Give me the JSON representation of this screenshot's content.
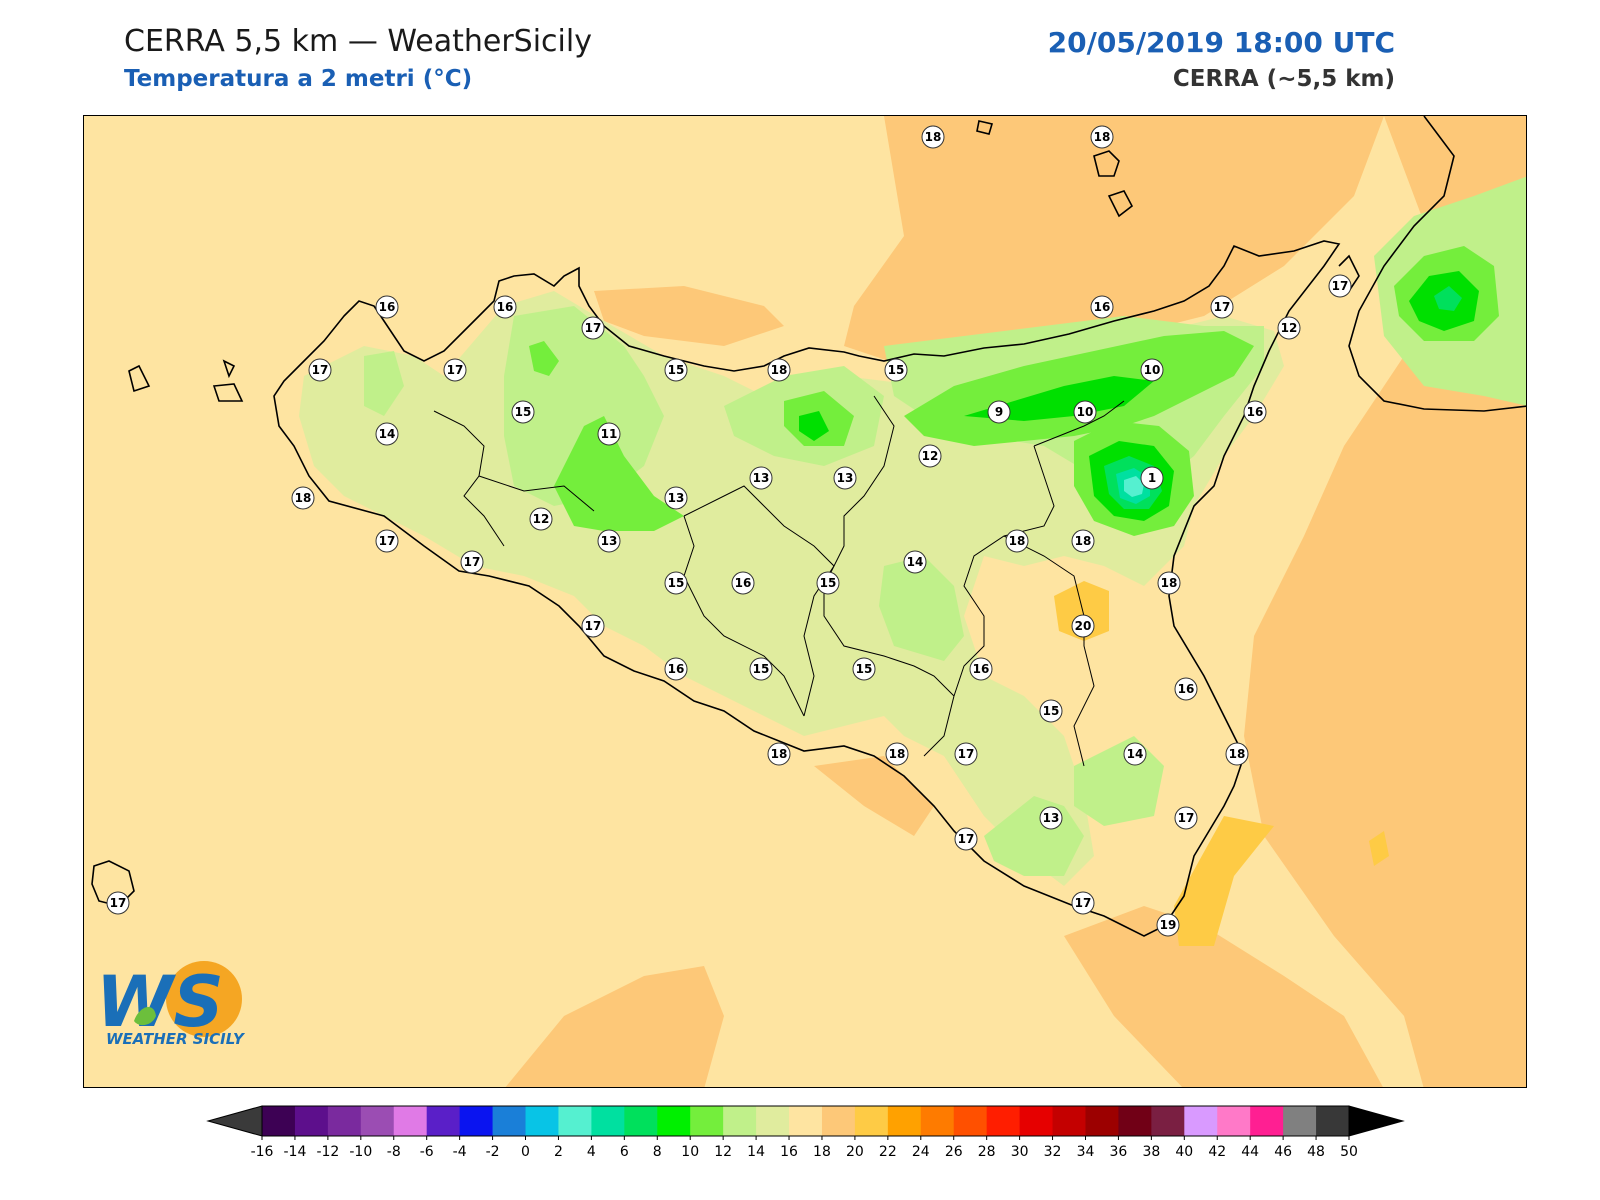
{
  "header": {
    "title": "CERRA 5,5 km — WeatherSicily",
    "subtitle": "Temperatura a 2 metri (°C)",
    "datetime": "20/05/2019 18:00 UTC",
    "model": "CERRA (~5,5 km)"
  },
  "logo": {
    "letters": "WS",
    "name": "WEATHER SICILY",
    "colors": {
      "blue": "#1a6fb8",
      "orange": "#f5a623",
      "green": "#6cbf3c"
    }
  },
  "colorbar": {
    "ticks": [
      "-16",
      "-14",
      "-12",
      "-10",
      "-8",
      "-6",
      "-4",
      "-2",
      "0",
      "2",
      "4",
      "6",
      "8",
      "10",
      "12",
      "14",
      "16",
      "18",
      "20",
      "22",
      "24",
      "26",
      "28",
      "30",
      "32",
      "34",
      "36",
      "38",
      "40",
      "42",
      "44",
      "46",
      "48",
      "50"
    ],
    "colors": [
      "#3d0154",
      "#5d0f8c",
      "#7a2a9e",
      "#9b4db3",
      "#e07ae6",
      "#5a1fc8",
      "#0a14f0",
      "#1a7fd8",
      "#08c4e6",
      "#55f0d0",
      "#00e0a0",
      "#00e05c",
      "#00f000",
      "#74ee3c",
      "#c0f08a",
      "#e0ec9e",
      "#fee4a1",
      "#fdc878",
      "#fecb45",
      "#ffa100",
      "#fe7b00",
      "#ff5000",
      "#ff1e00",
      "#e60000",
      "#c40000",
      "#9c0000",
      "#710016",
      "#7a1f42",
      "#d99aff",
      "#ff79c8",
      "#ff1f92",
      "#808080",
      "#383838"
    ],
    "under_color": "#3a3a3a",
    "over_color": "#000000"
  },
  "station_values": [
    {
      "value": "18"
    },
    {
      "value": "18"
    },
    {
      "value": "16"
    },
    {
      "value": "16"
    },
    {
      "value": "17"
    },
    {
      "value": "17"
    },
    {
      "value": "17"
    },
    {
      "value": "15"
    },
    {
      "value": "18"
    },
    {
      "value": "15"
    },
    {
      "value": "16"
    },
    {
      "value": "17"
    },
    {
      "value": "17"
    },
    {
      "value": "12"
    },
    {
      "value": "10"
    },
    {
      "value": "14"
    },
    {
      "value": "11"
    },
    {
      "value": "9"
    },
    {
      "value": "10"
    },
    {
      "value": "16"
    },
    {
      "value": "15"
    },
    {
      "value": "13"
    },
    {
      "value": "13"
    },
    {
      "value": "12"
    },
    {
      "value": "1"
    },
    {
      "value": "18"
    },
    {
      "value": "13"
    },
    {
      "value": "12"
    },
    {
      "value": "17"
    },
    {
      "value": "13"
    },
    {
      "value": "18"
    },
    {
      "value": "18"
    },
    {
      "value": "14"
    },
    {
      "value": "17"
    },
    {
      "value": "15"
    },
    {
      "value": "16"
    },
    {
      "value": "15"
    },
    {
      "value": "18"
    },
    {
      "value": "20"
    },
    {
      "value": "17"
    },
    {
      "value": "16"
    },
    {
      "value": "15"
    },
    {
      "value": "15"
    },
    {
      "value": "16"
    },
    {
      "value": "16"
    },
    {
      "value": "15"
    },
    {
      "value": "18"
    },
    {
      "value": "18"
    },
    {
      "value": "17"
    },
    {
      "value": "14"
    },
    {
      "value": "18"
    },
    {
      "value": "17"
    },
    {
      "value": "13"
    },
    {
      "value": "17"
    },
    {
      "value": "17"
    },
    {
      "value": "17"
    },
    {
      "value": "19"
    }
  ]
}
